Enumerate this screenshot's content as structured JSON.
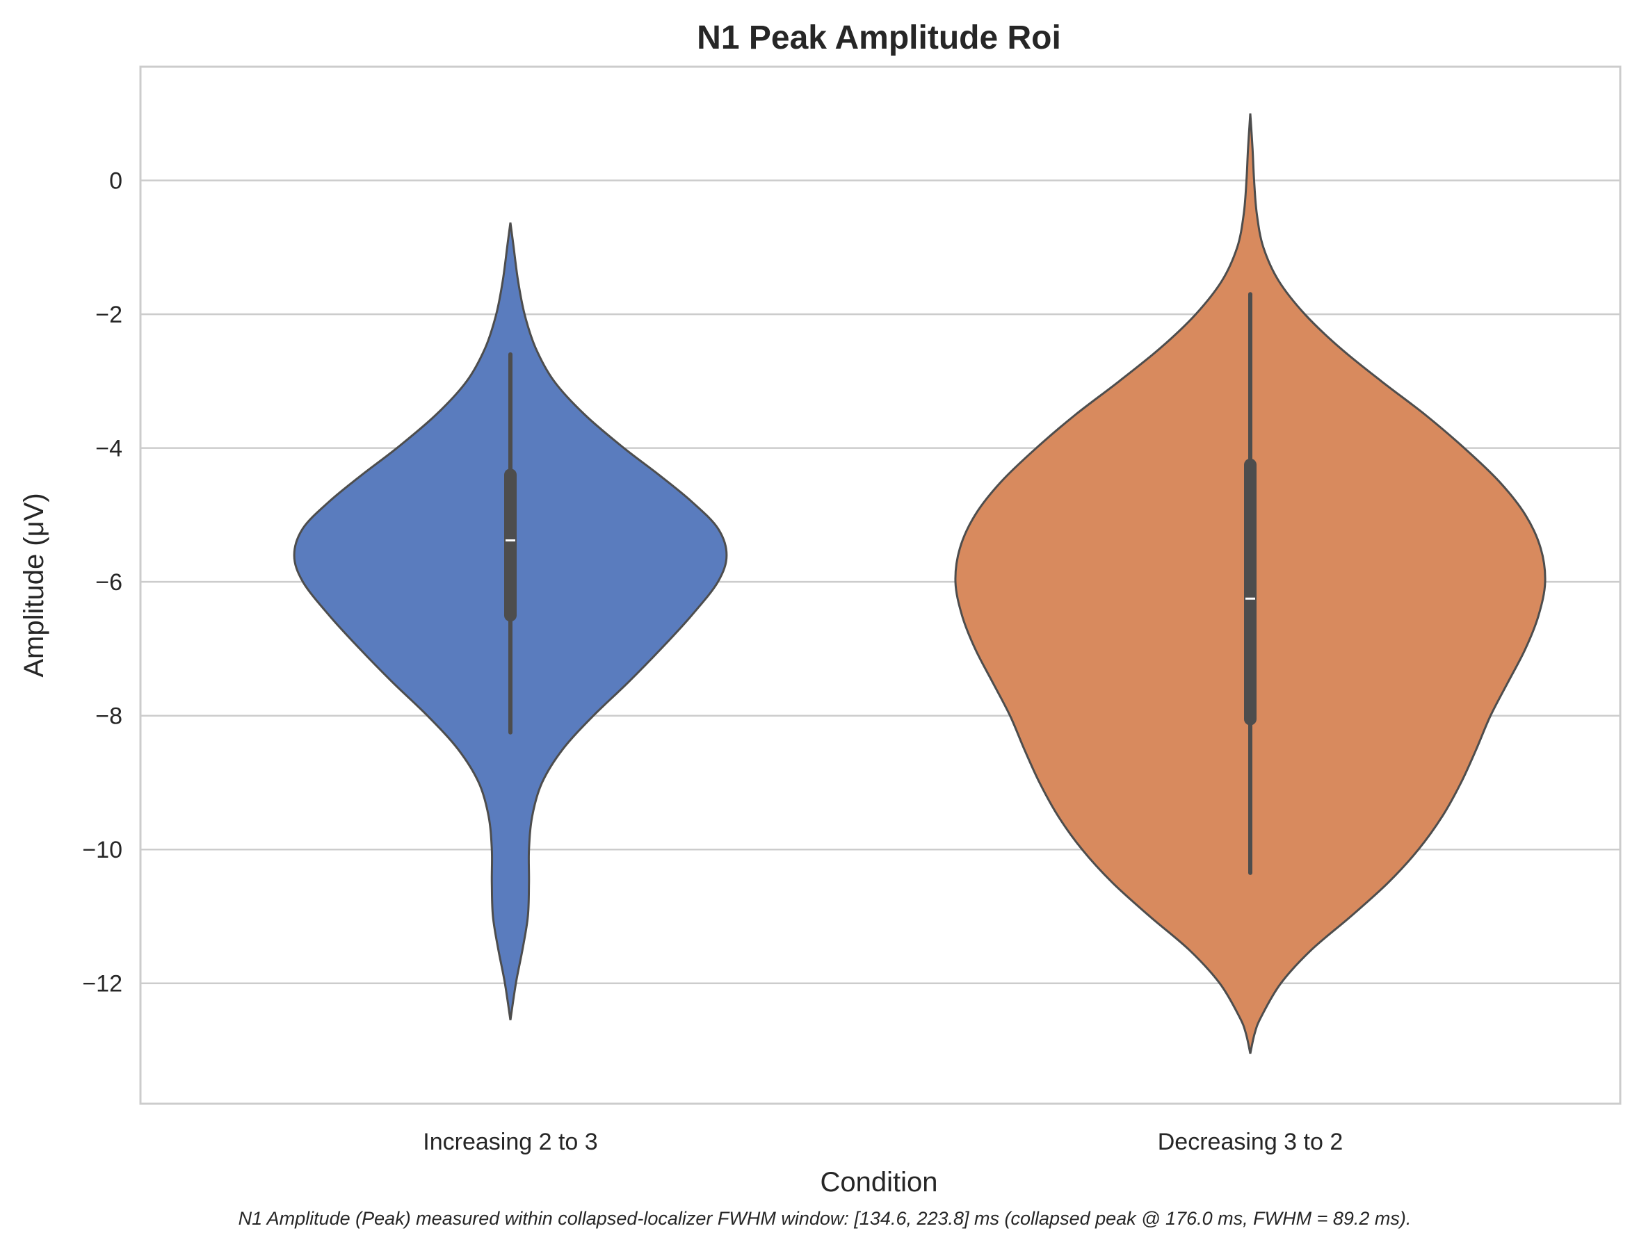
{
  "chart_data": {
    "type": "violin",
    "title": "N1 Peak Amplitude Roi",
    "xlabel": "Condition",
    "ylabel": "Amplitude (μV)",
    "ylim": [
      -13.8,
      1.7
    ],
    "yticks": [
      0,
      -2,
      -4,
      -6,
      -8,
      -10,
      -12
    ],
    "ytick_labels": [
      "0",
      "−2",
      "−4",
      "−6",
      "−8",
      "−10",
      "−12"
    ],
    "grid": true,
    "categories": [
      "Increasing 2 to 3",
      "Decreasing 3 to 2"
    ],
    "series": [
      {
        "name": "Increasing 2 to 3",
        "color": "#5a7cbe",
        "range": [
          -12.55,
          -0.63
        ],
        "whisker": [
          -8.25,
          -2.6
        ],
        "q1": -6.5,
        "q3": -4.4,
        "median": -5.38,
        "density": [
          [
            -12.55,
            0.0
          ],
          [
            -12.0,
            0.05
          ],
          [
            -11.5,
            0.11
          ],
          [
            -11.0,
            0.16
          ],
          [
            -10.5,
            0.17
          ],
          [
            -10.0,
            0.17
          ],
          [
            -9.5,
            0.2
          ],
          [
            -9.0,
            0.29
          ],
          [
            -8.5,
            0.48
          ],
          [
            -8.0,
            0.76
          ],
          [
            -7.5,
            1.08
          ],
          [
            -7.0,
            1.38
          ],
          [
            -6.5,
            1.66
          ],
          [
            -6.0,
            1.9
          ],
          [
            -5.6,
            1.98
          ],
          [
            -5.2,
            1.9
          ],
          [
            -4.8,
            1.66
          ],
          [
            -4.4,
            1.36
          ],
          [
            -4.0,
            1.04
          ],
          [
            -3.5,
            0.68
          ],
          [
            -3.0,
            0.4
          ],
          [
            -2.5,
            0.23
          ],
          [
            -2.0,
            0.13
          ],
          [
            -1.5,
            0.07
          ],
          [
            -1.0,
            0.03
          ],
          [
            -0.63,
            0.0
          ]
        ]
      },
      {
        "name": "Decreasing 3 to 2",
        "color": "#d88a5e",
        "range": [
          -13.05,
          1.0
        ],
        "whisker": [
          -10.35,
          -1.7
        ],
        "q1": -8.05,
        "q3": -4.25,
        "median": -6.25,
        "density": [
          [
            -13.05,
            0.0
          ],
          [
            -12.75,
            0.04
          ],
          [
            -12.5,
            0.1
          ],
          [
            -12.0,
            0.28
          ],
          [
            -11.5,
            0.56
          ],
          [
            -11.0,
            0.92
          ],
          [
            -10.5,
            1.26
          ],
          [
            -10.0,
            1.54
          ],
          [
            -9.5,
            1.76
          ],
          [
            -9.0,
            1.93
          ],
          [
            -8.5,
            2.07
          ],
          [
            -8.0,
            2.2
          ],
          [
            -7.5,
            2.36
          ],
          [
            -7.0,
            2.52
          ],
          [
            -6.5,
            2.64
          ],
          [
            -6.0,
            2.7
          ],
          [
            -5.5,
            2.66
          ],
          [
            -5.0,
            2.52
          ],
          [
            -4.5,
            2.28
          ],
          [
            -4.0,
            1.96
          ],
          [
            -3.5,
            1.6
          ],
          [
            -3.0,
            1.2
          ],
          [
            -2.5,
            0.82
          ],
          [
            -2.0,
            0.5
          ],
          [
            -1.5,
            0.26
          ],
          [
            -1.0,
            0.12
          ],
          [
            -0.5,
            0.06
          ],
          [
            0.0,
            0.035
          ],
          [
            0.5,
            0.02
          ],
          [
            1.0,
            0.0
          ]
        ]
      }
    ]
  },
  "caption": "N1 Amplitude (Peak) measured within collapsed-localizer FWHM window: [134.6, 223.8] ms (collapsed peak @ 176.0 ms, FWHM = 89.2 ms)."
}
